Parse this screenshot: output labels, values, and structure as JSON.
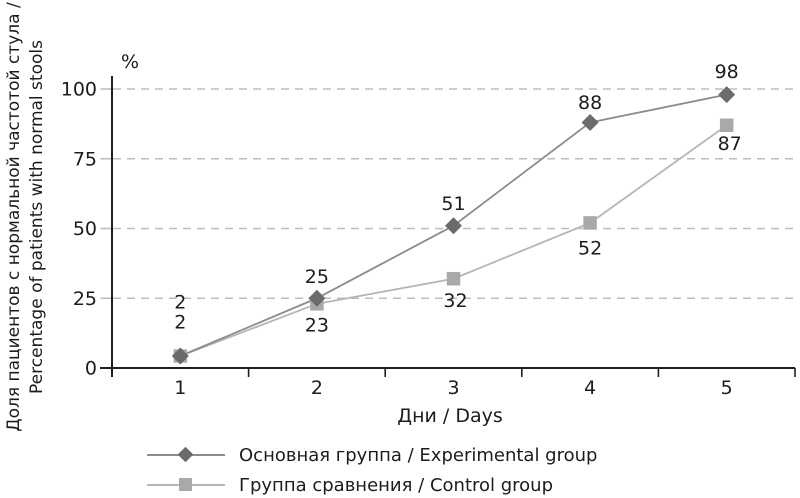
{
  "colors": {
    "axis": "#1f1f1f",
    "gridline": "#bdbdbd",
    "text": "#1c1c1c",
    "background": "#ffffff"
  },
  "chart_data": {
    "type": "line",
    "x": [
      1,
      2,
      3,
      4,
      5
    ],
    "xlabel": "Дни / Days",
    "ylabel_line1": "Доля пациентов с нормальной частотой стула /",
    "ylabel_line2": "Percentage of patients with normal stools",
    "y_unit": "%",
    "ylim": [
      0,
      100
    ],
    "yticks": [
      0,
      25,
      50,
      75,
      100
    ],
    "grid": "horizontal-dashed",
    "legend_position": "bottom-left",
    "series": [
      {
        "name": "Основная группа / Experimental group",
        "marker": "diamond",
        "line_color": "#8c8c8c",
        "marker_color": "#6b6b6b",
        "values": [
          2,
          25,
          51,
          88,
          98
        ]
      },
      {
        "name": "Группа сравнения / Control group",
        "marker": "square",
        "line_color": "#b5b5b5",
        "marker_color": "#a9a9a9",
        "values": [
          2,
          23,
          32,
          52,
          87
        ]
      }
    ]
  }
}
